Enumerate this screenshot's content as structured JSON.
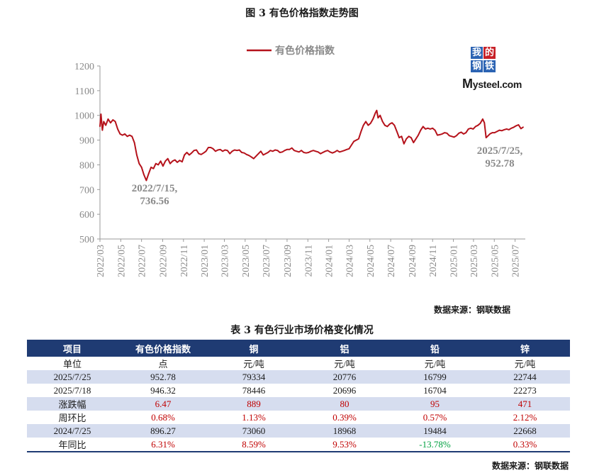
{
  "figure_title": "图 3  有色价格指数走势图",
  "chart_data": {
    "type": "line",
    "title": "",
    "legend": [
      "有色价格指数"
    ],
    "legend_position": "top-center",
    "line_color": "#b5121b",
    "ylim": [
      500,
      1200
    ],
    "yticks": [
      "500",
      "600",
      "700",
      "800",
      "900",
      "1000",
      "1100",
      "1200"
    ],
    "xticks": [
      "2022/03",
      "2022/05",
      "2022/07",
      "2022/09",
      "2022/11",
      "2023/01",
      "2023/03",
      "2023/05",
      "2023/07",
      "2023/09",
      "2023/11",
      "2024/01",
      "2024/03",
      "2024/05",
      "2024/07",
      "2024/09",
      "2024/11",
      "2025/01",
      "2025/03",
      "2025/05",
      "2025/07"
    ],
    "grid": false,
    "series": [
      {
        "name": "有色价格指数",
        "points": [
          [
            "2022-03-01",
            955
          ],
          [
            "2022-03-04",
            1005
          ],
          [
            "2022-03-08",
            940
          ],
          [
            "2022-03-12",
            975
          ],
          [
            "2022-03-18",
            960
          ],
          [
            "2022-03-25",
            985
          ],
          [
            "2022-04-01",
            970
          ],
          [
            "2022-04-08",
            982
          ],
          [
            "2022-04-15",
            975
          ],
          [
            "2022-04-22",
            945
          ],
          [
            "2022-04-29",
            925
          ],
          [
            "2022-05-06",
            920
          ],
          [
            "2022-05-13",
            925
          ],
          [
            "2022-05-20",
            915
          ],
          [
            "2022-05-27",
            920
          ],
          [
            "2022-06-03",
            915
          ],
          [
            "2022-06-10",
            890
          ],
          [
            "2022-06-17",
            840
          ],
          [
            "2022-06-24",
            805
          ],
          [
            "2022-07-01",
            790
          ],
          [
            "2022-07-08",
            760
          ],
          [
            "2022-07-15",
            736.56
          ],
          [
            "2022-07-22",
            765
          ],
          [
            "2022-07-29",
            790
          ],
          [
            "2022-08-05",
            785
          ],
          [
            "2022-08-12",
            805
          ],
          [
            "2022-08-19",
            800
          ],
          [
            "2022-08-26",
            815
          ],
          [
            "2022-09-02",
            795
          ],
          [
            "2022-09-09",
            815
          ],
          [
            "2022-09-16",
            825
          ],
          [
            "2022-09-23",
            805
          ],
          [
            "2022-09-30",
            815
          ],
          [
            "2022-10-07",
            820
          ],
          [
            "2022-10-14",
            810
          ],
          [
            "2022-10-21",
            818
          ],
          [
            "2022-10-28",
            812
          ],
          [
            "2022-11-04",
            840
          ],
          [
            "2022-11-11",
            850
          ],
          [
            "2022-11-18",
            840
          ],
          [
            "2022-11-25",
            848
          ],
          [
            "2022-12-02",
            858
          ],
          [
            "2022-12-09",
            860
          ],
          [
            "2022-12-16",
            845
          ],
          [
            "2022-12-23",
            842
          ],
          [
            "2022-12-30",
            848
          ],
          [
            "2023-01-06",
            855
          ],
          [
            "2023-01-13",
            870
          ],
          [
            "2023-01-20",
            870
          ],
          [
            "2023-01-27",
            865
          ],
          [
            "2023-02-03",
            855
          ],
          [
            "2023-02-10",
            860
          ],
          [
            "2023-02-17",
            862
          ],
          [
            "2023-02-24",
            855
          ],
          [
            "2023-03-03",
            860
          ],
          [
            "2023-03-10",
            858
          ],
          [
            "2023-03-17",
            845
          ],
          [
            "2023-03-24",
            855
          ],
          [
            "2023-03-31",
            860
          ],
          [
            "2023-04-07",
            858
          ],
          [
            "2023-04-14",
            860
          ],
          [
            "2023-04-21",
            850
          ],
          [
            "2023-04-28",
            848
          ],
          [
            "2023-05-05",
            842
          ],
          [
            "2023-05-12",
            838
          ],
          [
            "2023-05-19",
            832
          ],
          [
            "2023-05-26",
            825
          ],
          [
            "2023-06-02",
            835
          ],
          [
            "2023-06-09",
            845
          ],
          [
            "2023-06-16",
            855
          ],
          [
            "2023-06-23",
            840
          ],
          [
            "2023-06-30",
            845
          ],
          [
            "2023-07-07",
            850
          ],
          [
            "2023-07-14",
            858
          ],
          [
            "2023-07-21",
            855
          ],
          [
            "2023-07-28",
            860
          ],
          [
            "2023-08-04",
            858
          ],
          [
            "2023-08-11",
            850
          ],
          [
            "2023-08-18",
            852
          ],
          [
            "2023-08-25",
            858
          ],
          [
            "2023-09-01",
            862
          ],
          [
            "2023-09-08",
            862
          ],
          [
            "2023-09-15",
            868
          ],
          [
            "2023-09-22",
            858
          ],
          [
            "2023-09-29",
            855
          ],
          [
            "2023-10-06",
            852
          ],
          [
            "2023-10-13",
            858
          ],
          [
            "2023-10-20",
            850
          ],
          [
            "2023-10-27",
            848
          ],
          [
            "2023-11-03",
            850
          ],
          [
            "2023-11-10",
            855
          ],
          [
            "2023-11-17",
            858
          ],
          [
            "2023-11-24",
            855
          ],
          [
            "2023-12-01",
            852
          ],
          [
            "2023-12-08",
            845
          ],
          [
            "2023-12-15",
            850
          ],
          [
            "2023-12-22",
            855
          ],
          [
            "2023-12-29",
            858
          ],
          [
            "2024-01-05",
            852
          ],
          [
            "2024-01-12",
            848
          ],
          [
            "2024-01-19",
            852
          ],
          [
            "2024-01-26",
            858
          ],
          [
            "2024-02-02",
            852
          ],
          [
            "2024-02-09",
            855
          ],
          [
            "2024-02-16",
            858
          ],
          [
            "2024-02-23",
            862
          ],
          [
            "2024-03-01",
            865
          ],
          [
            "2024-03-08",
            880
          ],
          [
            "2024-03-15",
            895
          ],
          [
            "2024-03-22",
            900
          ],
          [
            "2024-03-29",
            905
          ],
          [
            "2024-04-05",
            935
          ],
          [
            "2024-04-12",
            960
          ],
          [
            "2024-04-19",
            975
          ],
          [
            "2024-04-26",
            960
          ],
          [
            "2024-05-03",
            968
          ],
          [
            "2024-05-10",
            985
          ],
          [
            "2024-05-17",
            1010
          ],
          [
            "2024-05-21",
            1020
          ],
          [
            "2024-05-25",
            990
          ],
          [
            "2024-05-31",
            1000
          ],
          [
            "2024-06-07",
            975
          ],
          [
            "2024-06-14",
            960
          ],
          [
            "2024-06-21",
            955
          ],
          [
            "2024-06-28",
            965
          ],
          [
            "2024-07-05",
            970
          ],
          [
            "2024-07-12",
            960
          ],
          [
            "2024-07-19",
            935
          ],
          [
            "2024-07-26",
            910
          ],
          [
            "2024-08-02",
            915
          ],
          [
            "2024-08-09",
            885
          ],
          [
            "2024-08-16",
            905
          ],
          [
            "2024-08-23",
            915
          ],
          [
            "2024-08-30",
            910
          ],
          [
            "2024-09-06",
            890
          ],
          [
            "2024-09-13",
            905
          ],
          [
            "2024-09-20",
            920
          ],
          [
            "2024-09-27",
            940
          ],
          [
            "2024-10-04",
            955
          ],
          [
            "2024-10-11",
            945
          ],
          [
            "2024-10-18",
            948
          ],
          [
            "2024-10-25",
            945
          ],
          [
            "2024-11-01",
            948
          ],
          [
            "2024-11-08",
            940
          ],
          [
            "2024-11-15",
            920
          ],
          [
            "2024-11-22",
            922
          ],
          [
            "2024-11-29",
            925
          ],
          [
            "2024-12-06",
            930
          ],
          [
            "2024-12-13",
            928
          ],
          [
            "2024-12-20",
            918
          ],
          [
            "2024-12-27",
            915
          ],
          [
            "2025-01-03",
            912
          ],
          [
            "2025-01-10",
            918
          ],
          [
            "2025-01-17",
            928
          ],
          [
            "2025-01-24",
            932
          ],
          [
            "2025-01-31",
            925
          ],
          [
            "2025-02-07",
            930
          ],
          [
            "2025-02-14",
            945
          ],
          [
            "2025-02-21",
            948
          ],
          [
            "2025-02-28",
            945
          ],
          [
            "2025-03-07",
            955
          ],
          [
            "2025-03-14",
            960
          ],
          [
            "2025-03-21",
            968
          ],
          [
            "2025-03-28",
            985
          ],
          [
            "2025-04-02",
            970
          ],
          [
            "2025-04-07",
            910
          ],
          [
            "2025-04-11",
            915
          ],
          [
            "2025-04-18",
            925
          ],
          [
            "2025-04-25",
            930
          ],
          [
            "2025-05-02",
            930
          ],
          [
            "2025-05-09",
            935
          ],
          [
            "2025-05-16",
            940
          ],
          [
            "2025-05-23",
            938
          ],
          [
            "2025-05-30",
            942
          ],
          [
            "2025-06-06",
            945
          ],
          [
            "2025-06-13",
            942
          ],
          [
            "2025-06-20",
            948
          ],
          [
            "2025-06-27",
            952
          ],
          [
            "2025-07-04",
            958
          ],
          [
            "2025-07-11",
            962
          ],
          [
            "2025-07-18",
            946.32
          ],
          [
            "2025-07-25",
            952.78
          ]
        ]
      }
    ],
    "annotations": [
      {
        "lines": [
          "2022/7/15,",
          "736.56"
        ]
      },
      {
        "lines": [
          "2025/7/25,",
          "952.78"
        ]
      }
    ]
  },
  "logo": {
    "chars": [
      "我",
      "的",
      "钢",
      "铁"
    ],
    "word_m": "M",
    "word_rest": "ysteel",
    "word_dot": ".com"
  },
  "source_1": "数据来源：钢联数据",
  "table_title": "表 3 有色行业市场价格变化情况",
  "table": {
    "headers": [
      "项目",
      "有色价格指数",
      "铜",
      "铝",
      "铅",
      "锌"
    ],
    "rows": [
      {
        "cells": [
          "单位",
          "点",
          "元/吨",
          "元/吨",
          "元/吨",
          "元/吨"
        ],
        "color": "",
        "stripe": false
      },
      {
        "cells": [
          "2025/7/25",
          "952.78",
          "79334",
          "20776",
          "16799",
          "22744"
        ],
        "color": "",
        "stripe": true
      },
      {
        "cells": [
          "2025/7/18",
          "946.32",
          "78446",
          "20696",
          "16704",
          "22273"
        ],
        "color": "",
        "stripe": false
      },
      {
        "cells": [
          "涨跌幅",
          "6.47",
          "889",
          "80",
          "95",
          "471"
        ],
        "color": "red",
        "stripe": true
      },
      {
        "cells": [
          "周环比",
          "0.68%",
          "1.13%",
          "0.39%",
          "0.57%",
          "2.12%"
        ],
        "color": "red",
        "stripe": false
      },
      {
        "cells": [
          "2024/7/25",
          "896.27",
          "73060",
          "18968",
          "19484",
          "22668"
        ],
        "color": "",
        "stripe": true
      },
      {
        "cells": [
          "年同比",
          "6.31%",
          "8.59%",
          "9.53%",
          "-13.78%",
          "0.33%"
        ],
        "color": "mixed",
        "stripe": false
      }
    ]
  },
  "source_2": "数据来源：钢联数据"
}
